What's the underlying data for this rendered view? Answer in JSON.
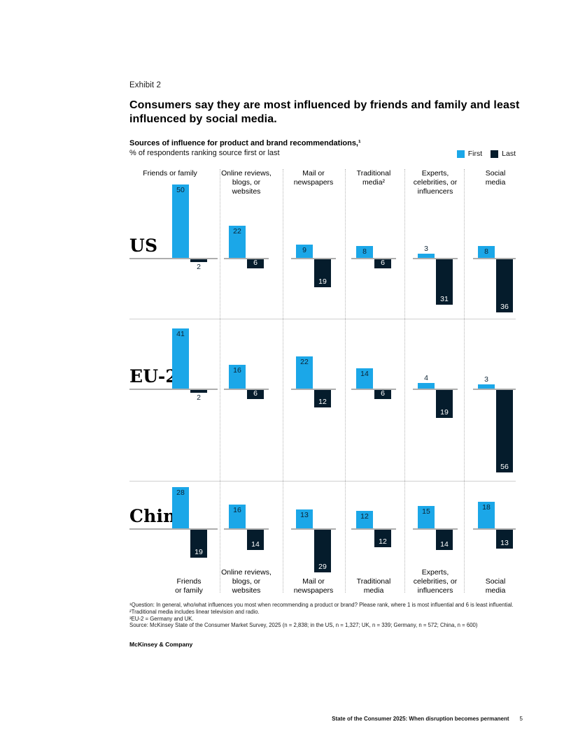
{
  "page": {
    "exhibit_label": "Exhibit 2",
    "title": "Consumers say they are most influenced by friends and family and least\ninfluenced by social media.",
    "subtitle_bold": "Sources of influence for product and brand recommendations,¹",
    "subtitle_unit": "% of respondents ranking source first or last",
    "brand_line": "McKinsey & Company",
    "footer_title": "State of the Consumer 2025: When disruption becomes permanent",
    "footer_page_number": "5"
  },
  "legend": {
    "first_label": "First",
    "last_label": "Last"
  },
  "colors": {
    "first": "#1BA7E8",
    "last": "#051C2C"
  },
  "footnotes": {
    "line1": "¹Question: In general, who/what influences you most when recommending a product or brand? Please rank, where 1 is most influential and 6 is least influential.",
    "line2": "²Traditional media includes linear television and radio.",
    "line3": "³EU-2 = Germany and UK.",
    "source": "Source: McKinsey State of the Consumer Market Survey, 2025 (n = 2,838; in the US, n = 1,327; UK, n = 339; Germany, n = 572; China, n = 600)"
  },
  "chart_data": {
    "type": "bar",
    "title": "Sources of influence for product and brand recommendations",
    "unit": "% of respondents ranking source first or last",
    "legend": [
      "First",
      "Last"
    ],
    "legend_position": "top-right",
    "categories": [
      "Friends or family",
      "Online reviews, blogs, or websites",
      "Mail or newspapers",
      "Traditional media",
      "Experts, celebrities, or influencers",
      "Social media"
    ],
    "column_headers_top": [
      "Friends or family",
      "Online reviews,\nblogs, or\nwebsites",
      "Mail or\nnewspapers",
      "Traditional\nmedia²",
      "Experts,\ncelebrities, or\ninfluencers",
      "Social\nmedia"
    ],
    "column_headers_bottom": [
      "Friends\nor family",
      "Online reviews,\nblogs, or\nwebsites",
      "Mail or\nnewspapers",
      "Traditional\nmedia",
      "Experts,\ncelebrities, or\ninfluencers",
      "Social\nmedia"
    ],
    "rows": [
      {
        "label": "US",
        "series": [
          {
            "name": "First",
            "values": [
              50,
              22,
              9,
              8,
              3,
              8
            ]
          },
          {
            "name": "Last",
            "values": [
              2,
              6,
              19,
              6,
              31,
              36
            ]
          }
        ]
      },
      {
        "label": "EU-2³",
        "series": [
          {
            "name": "First",
            "values": [
              41,
              16,
              22,
              14,
              4,
              3
            ]
          },
          {
            "name": "Last",
            "values": [
              2,
              6,
              12,
              6,
              19,
              56
            ]
          }
        ]
      },
      {
        "label": "China",
        "series": [
          {
            "name": "First",
            "values": [
              28,
              16,
              13,
              12,
              15,
              18
            ]
          },
          {
            "name": "Last",
            "values": [
              19,
              14,
              29,
              12,
              14,
              13
            ]
          }
        ]
      }
    ]
  }
}
